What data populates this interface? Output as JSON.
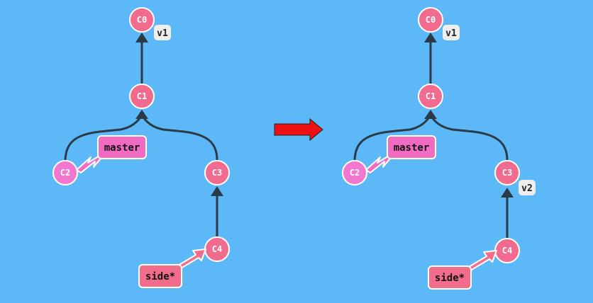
{
  "colors": {
    "background": "#5cb8f6",
    "commit_master_side": "#f06b8d",
    "commit_c2": "#f277cf",
    "commit_stroke": "#ffffff",
    "edge": "#2b3a47",
    "branch_master_fill": "#f06bc1",
    "branch_side_fill": "#f26d8b",
    "tag_fill": "#eeeeee",
    "transition_arrow": "#ee1111"
  },
  "before": {
    "commits": {
      "c0": "C0",
      "c1": "C1",
      "c2": "C2",
      "c3": "C3",
      "c4": "C4"
    },
    "branches": {
      "master": "master",
      "side": "side*"
    },
    "tags": {
      "v1": "v1"
    }
  },
  "after": {
    "commits": {
      "c0": "C0",
      "c1": "C1",
      "c2": "C2",
      "c3": "C3",
      "c4": "C4"
    },
    "branches": {
      "master": "master",
      "side": "side*"
    },
    "tags": {
      "v1": "v1",
      "v2": "v2"
    }
  },
  "transition_icon": "right-arrow-icon"
}
